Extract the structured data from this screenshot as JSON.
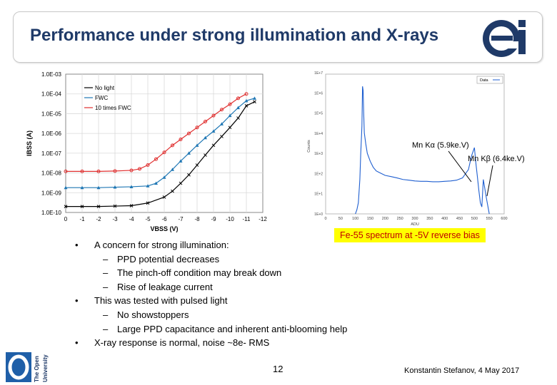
{
  "slide": {
    "title": "Performance under strong illumination and X-rays",
    "fe_label": "Fe-55 spectrum at -5V reverse bias",
    "page_number": "12",
    "author": "Konstantin Stefanov, 4 May 2017",
    "ou_logo_text": [
      "The Open",
      "University"
    ],
    "bullets": [
      {
        "level": 1,
        "text": "A concern for strong illumination:"
      },
      {
        "level": 2,
        "text": "PPD potential decreases"
      },
      {
        "level": 2,
        "text": "The pinch-off condition may break down"
      },
      {
        "level": 2,
        "text": "Rise of leakage current"
      },
      {
        "level": 1,
        "text": "This was tested with pulsed light"
      },
      {
        "level": 2,
        "text": "No showstoppers"
      },
      {
        "level": 2,
        "text": "Large PPD capacitance and inherent anti-blooming help"
      },
      {
        "level": 1,
        "text": "X-ray response is normal, noise ~8e- RMS"
      }
    ],
    "colors": {
      "title": "#1f3a68",
      "highlight": "#ffff00",
      "fe_text": "#c00000"
    }
  },
  "chart_data": [
    {
      "type": "line",
      "title": "",
      "xlabel": "VBSS (V)",
      "ylabel": "IBSS (A)",
      "x_ticks": [
        "0",
        "-1",
        "-2",
        "-3",
        "-4",
        "-5",
        "-6",
        "-7",
        "-8",
        "-9",
        "-10",
        "-11",
        "-12"
      ],
      "y_ticks": [
        "1.0E-03",
        "1.0E-04",
        "1.0E-05",
        "1.0E-06",
        "1.0E-07",
        "1.0E-08",
        "1.0E-09",
        "1.0E-10"
      ],
      "xlim": [
        0,
        -12
      ],
      "ylim": [
        1e-10,
        0.001
      ],
      "y_scale": "log",
      "legend_position": "top-left",
      "series": [
        {
          "name": "No light",
          "color": "#000000",
          "marker": "x",
          "x": [
            0,
            -1,
            -2,
            -3,
            -4,
            -5,
            -6,
            -6.5,
            -7,
            -7.5,
            -8,
            -8.5,
            -9,
            -9.5,
            -10,
            -10.5,
            -11,
            -11.5
          ],
          "y": [
            2e-10,
            2e-10,
            2e-10,
            2.1e-10,
            2.2e-10,
            3e-10,
            6e-10,
            1.2e-09,
            3e-09,
            8e-09,
            2.5e-08,
            8e-08,
            2.5e-07,
            7e-07,
            2e-06,
            6e-06,
            2.5e-05,
            4e-05
          ]
        },
        {
          "name": "FWC",
          "color": "#1f77b4",
          "marker": "triangle",
          "x": [
            0,
            -1,
            -2,
            -3,
            -4,
            -5,
            -5.5,
            -6,
            -6.5,
            -7,
            -7.5,
            -8,
            -8.5,
            -9,
            -9.5,
            -10,
            -10.5,
            -11,
            -11.5
          ],
          "y": [
            1.8e-09,
            1.8e-09,
            1.8e-09,
            1.9e-09,
            2e-09,
            2.2e-09,
            3e-09,
            6e-09,
            1.5e-08,
            4e-08,
            1e-07,
            2.5e-07,
            6e-07,
            1.3e-06,
            3e-06,
            8e-06,
            2e-05,
            4.5e-05,
            6e-05
          ]
        },
        {
          "name": "10 times FWC",
          "color": "#e03030",
          "marker": "o",
          "x": [
            0,
            -1,
            -2,
            -3,
            -4,
            -4.5,
            -5,
            -5.5,
            -6,
            -6.5,
            -7,
            -7.5,
            -8,
            -8.5,
            -9,
            -9.5,
            -10,
            -10.5,
            -11
          ],
          "y": [
            1.2e-08,
            1.2e-08,
            1.2e-08,
            1.25e-08,
            1.35e-08,
            1.6e-08,
            2.5e-08,
            5e-08,
            1.1e-07,
            2.5e-07,
            5e-07,
            1e-06,
            2e-06,
            4e-06,
            8e-06,
            1.6e-05,
            3e-05,
            6e-05,
            0.0001
          ]
        }
      ]
    },
    {
      "type": "line",
      "title": "",
      "xlabel": "ADU",
      "ylabel": "Counts",
      "x_ticks": [
        "0",
        "50",
        "100",
        "150",
        "200",
        "250",
        "300",
        "350",
        "400",
        "450",
        "500",
        "550",
        "600"
      ],
      "y_ticks": [
        "1E+7",
        "1E+6",
        "1E+5",
        "1E+4",
        "1E+3",
        "1E+2",
        "1E+1",
        "1E+0"
      ],
      "xlim": [
        0,
        600
      ],
      "y_scale": "log",
      "legend_entries": [
        "Data"
      ],
      "annotations": [
        "Mn Kα (5.9ke.V)",
        "Mn Kβ (6.4ke.V)"
      ],
      "series": [
        {
          "name": "Data",
          "color": "#1f5fd0",
          "x": [
            100,
            105,
            110,
            115,
            118,
            120,
            122,
            124,
            126,
            128,
            130,
            135,
            140,
            150,
            160,
            170,
            180,
            200,
            220,
            240,
            260,
            280,
            300,
            320,
            340,
            360,
            380,
            400,
            420,
            440,
            460,
            480,
            490,
            500,
            505,
            510,
            515,
            520,
            525,
            530,
            540,
            550
          ],
          "y": [
            1,
            1.5,
            3,
            30,
            400,
            1500,
            6000,
            300000.0,
            200000.0,
            20000.0,
            3000,
            1000,
            400,
            180,
            100,
            70,
            60,
            45,
            40,
            35,
            30,
            28,
            26,
            25,
            25,
            24,
            24,
            25,
            26,
            28,
            35,
            80,
            300,
            700,
            150,
            40,
            10,
            3,
            2,
            30,
            5,
            1
          ]
        }
      ]
    }
  ]
}
